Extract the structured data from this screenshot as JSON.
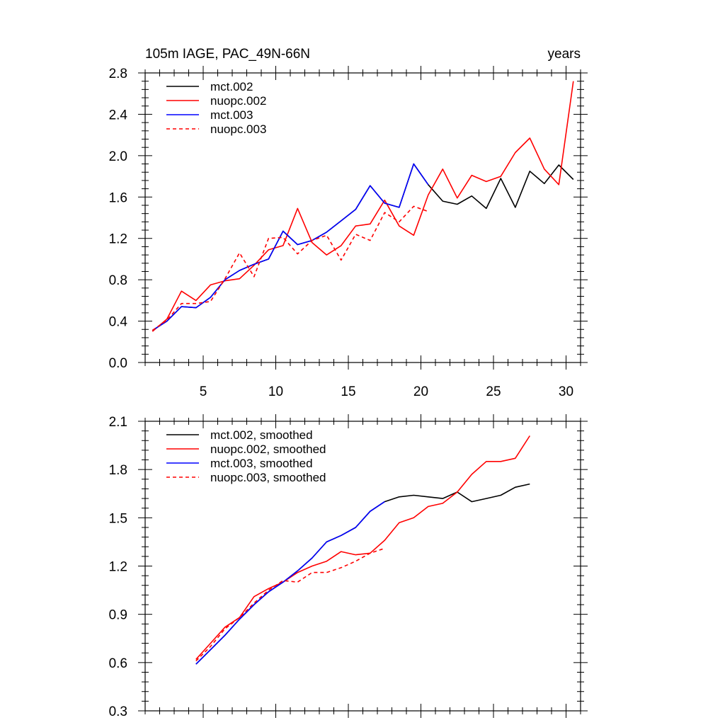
{
  "chart_data": [
    {
      "type": "line",
      "title": "105m IAGE, PAC_49N-66N",
      "title_right": "years",
      "xlim": [
        1,
        31
      ],
      "ylim": [
        0.0,
        2.8
      ],
      "x_ticks": [
        5,
        10,
        15,
        20,
        25,
        30
      ],
      "x_tick_labels": [
        "5",
        "10",
        "15",
        "20",
        "25",
        "30"
      ],
      "y_ticks": [
        0.0,
        0.4,
        0.8,
        1.2,
        1.6,
        2.0,
        2.4,
        2.8
      ],
      "y_tick_labels": [
        "0.0",
        "0.4",
        "0.8",
        "1.2",
        "1.6",
        "2.0",
        "2.4",
        "2.8"
      ],
      "legend_position": "top-left",
      "series": [
        {
          "name": "mct.002",
          "color": "#000000",
          "dash": "solid",
          "x": [
            1.5,
            2.5,
            3.5,
            4.5,
            5.5,
            6.5,
            7.5,
            8.5,
            9.5,
            10.5,
            11.5,
            12.5,
            13.5,
            14.5,
            15.5,
            16.5,
            17.5,
            18.5,
            19.5,
            20.5,
            21.5,
            22.5,
            23.5,
            24.5,
            25.5,
            26.5,
            27.5,
            28.5,
            29.5,
            30.5
          ],
          "values": [
            0.31,
            0.4,
            0.54,
            0.53,
            0.63,
            0.8,
            0.89,
            0.95,
            1.0,
            1.27,
            1.14,
            1.18,
            1.26,
            1.37,
            1.48,
            1.71,
            1.54,
            1.5,
            1.92,
            1.72,
            1.56,
            1.53,
            1.61,
            1.49,
            1.78,
            1.5,
            1.85,
            1.73,
            1.91,
            1.77
          ]
        },
        {
          "name": "nuopc.002",
          "color": "#ff0000",
          "dash": "solid",
          "x": [
            1.5,
            2.5,
            3.5,
            4.5,
            5.5,
            6.5,
            7.5,
            8.5,
            9.5,
            10.5,
            11.5,
            12.5,
            13.5,
            14.5,
            15.5,
            16.5,
            17.5,
            18.5,
            19.5,
            20.5,
            21.5,
            22.5,
            23.5,
            24.5,
            25.5,
            26.5,
            27.5,
            28.5,
            29.5,
            30.5
          ],
          "values": [
            0.3,
            0.42,
            0.69,
            0.6,
            0.75,
            0.79,
            0.81,
            0.94,
            1.09,
            1.13,
            1.49,
            1.16,
            1.04,
            1.13,
            1.32,
            1.34,
            1.57,
            1.32,
            1.23,
            1.62,
            1.87,
            1.59,
            1.81,
            1.75,
            1.8,
            2.03,
            2.17,
            1.87,
            1.72,
            2.72
          ]
        },
        {
          "name": "mct.003",
          "color": "#0000ff",
          "dash": "solid",
          "x": [
            1.5,
            2.5,
            3.5,
            4.5,
            5.5,
            6.5,
            7.5,
            8.5,
            9.5,
            10.5,
            11.5,
            12.5,
            13.5,
            14.5,
            15.5,
            16.5,
            17.5,
            18.5,
            19.5,
            20.5
          ],
          "values": [
            0.31,
            0.4,
            0.54,
            0.53,
            0.63,
            0.8,
            0.89,
            0.95,
            1.0,
            1.27,
            1.14,
            1.18,
            1.26,
            1.37,
            1.48,
            1.71,
            1.54,
            1.5,
            1.92,
            1.72
          ]
        },
        {
          "name": "nuopc.003",
          "color": "#ff0000",
          "dash": "dashed",
          "x": [
            1.5,
            2.5,
            3.5,
            4.5,
            5.5,
            6.5,
            7.5,
            8.5,
            9.5,
            10.5,
            11.5,
            12.5,
            13.5,
            14.5,
            15.5,
            16.5,
            17.5,
            18.5,
            19.5,
            20.5
          ],
          "values": [
            0.31,
            0.41,
            0.57,
            0.57,
            0.59,
            0.81,
            1.06,
            0.83,
            1.2,
            1.21,
            1.05,
            1.18,
            1.23,
            0.99,
            1.24,
            1.18,
            1.45,
            1.36,
            1.51,
            1.46
          ]
        }
      ]
    },
    {
      "type": "line",
      "xlim": [
        1,
        31
      ],
      "ylim": [
        0.3,
        2.1
      ],
      "x_ticks": [
        5,
        10,
        15,
        20,
        25,
        30
      ],
      "y_ticks": [
        0.3,
        0.6,
        0.9,
        1.2,
        1.5,
        1.8,
        2.1
      ],
      "y_tick_labels": [
        "0.3",
        "0.6",
        "0.9",
        "1.2",
        "1.5",
        "1.8",
        "2.1"
      ],
      "legend_position": "top-left",
      "series": [
        {
          "name": "mct.002, smoothed",
          "color": "#000000",
          "dash": "solid",
          "x": [
            4.5,
            5.5,
            6.5,
            7.5,
            8.5,
            9.5,
            10.5,
            11.5,
            12.5,
            13.5,
            14.5,
            15.5,
            16.5,
            17.5,
            18.5,
            19.5,
            20.5,
            21.5,
            22.5,
            23.5,
            24.5,
            25.5,
            26.5,
            27.5
          ],
          "values": [
            0.59,
            0.68,
            0.77,
            0.87,
            0.96,
            1.04,
            1.1,
            1.17,
            1.25,
            1.35,
            1.39,
            1.44,
            1.54,
            1.6,
            1.63,
            1.64,
            1.63,
            1.62,
            1.66,
            1.6,
            1.62,
            1.64,
            1.69,
            1.71
          ]
        },
        {
          "name": "nuopc.002, smoothed",
          "color": "#ff0000",
          "dash": "solid",
          "x": [
            4.5,
            5.5,
            6.5,
            7.5,
            8.5,
            9.5,
            10.5,
            11.5,
            12.5,
            13.5,
            14.5,
            15.5,
            16.5,
            17.5,
            18.5,
            19.5,
            20.5,
            21.5,
            22.5,
            23.5,
            24.5,
            25.5,
            26.5,
            27.5
          ],
          "values": [
            0.62,
            0.72,
            0.82,
            0.88,
            1.01,
            1.06,
            1.1,
            1.16,
            1.2,
            1.23,
            1.29,
            1.27,
            1.28,
            1.36,
            1.47,
            1.5,
            1.57,
            1.59,
            1.66,
            1.77,
            1.85,
            1.85,
            1.87,
            2.01
          ]
        },
        {
          "name": "mct.003, smoothed",
          "color": "#0000ff",
          "dash": "solid",
          "x": [
            4.5,
            5.5,
            6.5,
            7.5,
            8.5,
            9.5,
            10.5,
            11.5,
            12.5,
            13.5,
            14.5,
            15.5,
            16.5,
            17.5
          ],
          "values": [
            0.59,
            0.68,
            0.77,
            0.87,
            0.96,
            1.04,
            1.1,
            1.17,
            1.25,
            1.35,
            1.39,
            1.44,
            1.54,
            1.6
          ]
        },
        {
          "name": "nuopc.003, smoothed",
          "color": "#ff0000",
          "dash": "dashed",
          "x": [
            4.5,
            5.5,
            6.5,
            7.5,
            8.5,
            9.5,
            10.5,
            11.5,
            12.5,
            13.5,
            14.5,
            15.5,
            16.5,
            17.5
          ],
          "values": [
            0.61,
            0.7,
            0.81,
            0.88,
            0.97,
            1.05,
            1.11,
            1.1,
            1.16,
            1.16,
            1.19,
            1.23,
            1.28,
            1.31
          ]
        }
      ]
    }
  ]
}
